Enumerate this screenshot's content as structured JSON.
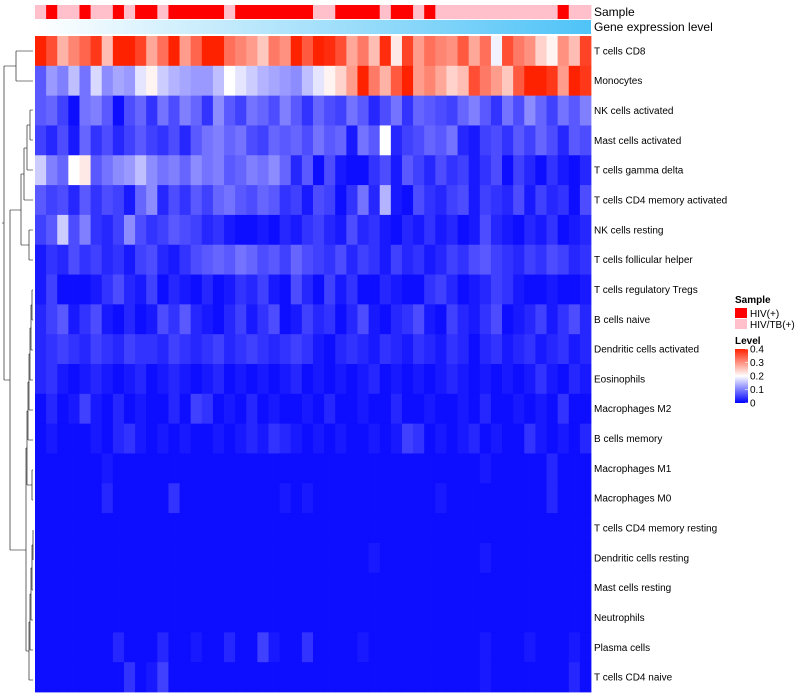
{
  "chart_data": {
    "type": "heatmap",
    "title": "",
    "annotation_tracks": [
      {
        "name": "Sample"
      },
      {
        "name": "Gene expression level"
      }
    ],
    "sample_groups": [
      "HIV/TB(+)",
      "HIV(+)",
      "HIV/TB(+)",
      "HIV/TB(+)",
      "HIV(+)",
      "HIV/TB(+)",
      "HIV/TB(+)",
      "HIV(+)",
      "HIV/TB(+)",
      "HIV(+)",
      "HIV(+)",
      "HIV/TB(+)",
      "HIV(+)",
      "HIV(+)",
      "HIV(+)",
      "HIV(+)",
      "HIV(+)",
      "HIV/TB(+)",
      "HIV(+)",
      "HIV(+)",
      "HIV(+)",
      "HIV(+)",
      "HIV(+)",
      "HIV(+)",
      "HIV(+)",
      "HIV/TB(+)",
      "HIV/TB(+)",
      "HIV(+)",
      "HIV(+)",
      "HIV(+)",
      "HIV(+)",
      "HIV/TB(+)",
      "HIV(+)",
      "HIV(+)",
      "HIV/TB(+)",
      "HIV(+)",
      "HIV/TB(+)",
      "HIV/TB(+)",
      "HIV/TB(+)",
      "HIV/TB(+)",
      "HIV/TB(+)",
      "HIV/TB(+)",
      "HIV/TB(+)",
      "HIV/TB(+)",
      "HIV/TB(+)",
      "HIV/TB(+)",
      "HIV/TB(+)",
      "HIV(+)",
      "HIV/TB(+)",
      "HIV/TB(+)"
    ],
    "rows": [
      "T cells CD8",
      "Monocytes",
      "NK cells activated",
      "Mast cells activated",
      "T cells gamma delta",
      "T cells CD4 memory activated",
      "NK cells resting",
      "T cells follicular helper",
      "T cells regulatory  Tregs",
      "B cells naive",
      "Dendritic cells activated",
      "Eosinophils",
      "Macrophages M2",
      "B cells memory",
      "Macrophages M1",
      "Macrophages M0",
      "T cells CD4 memory resting",
      "Dendritic cells resting",
      "Mast cells resting",
      "Neutrophils",
      "Plasma cells",
      "T cells CD4 naive"
    ],
    "values": [
      [
        0.42,
        0.36,
        0.27,
        0.31,
        0.34,
        0.38,
        0.26,
        0.41,
        0.45,
        0.37,
        0.28,
        0.33,
        0.42,
        0.29,
        0.34,
        0.46,
        0.45,
        0.33,
        0.31,
        0.29,
        0.25,
        0.32,
        0.3,
        0.42,
        0.35,
        0.44,
        0.39,
        0.36,
        0.28,
        0.32,
        0.26,
        0.39,
        0.22,
        0.37,
        0.29,
        0.33,
        0.31,
        0.3,
        0.35,
        0.28,
        0.33,
        0.19,
        0.36,
        0.32,
        0.3,
        0.24,
        0.21,
        0.3,
        0.26,
        0.37
      ],
      [
        0.07,
        0.12,
        0.1,
        0.15,
        0.09,
        0.17,
        0.11,
        0.13,
        0.12,
        0.18,
        0.21,
        0.16,
        0.14,
        0.13,
        0.12,
        0.12,
        0.15,
        0.2,
        0.18,
        0.16,
        0.14,
        0.13,
        0.12,
        0.11,
        0.15,
        0.18,
        0.21,
        0.24,
        0.29,
        0.42,
        0.32,
        0.27,
        0.35,
        0.44,
        0.29,
        0.31,
        0.28,
        0.24,
        0.26,
        0.36,
        0.32,
        0.29,
        0.25,
        0.35,
        0.4,
        0.45,
        0.38,
        0.29,
        0.46,
        0.38
      ],
      [
        0.07,
        0.08,
        0.05,
        0.01,
        0.09,
        0.1,
        0.07,
        0.01,
        0.06,
        0.08,
        0.04,
        0.09,
        0.06,
        0.1,
        0.08,
        0.04,
        0.11,
        0.07,
        0.05,
        0.09,
        0.08,
        0.06,
        0.1,
        0.07,
        0.04,
        0.08,
        0.06,
        0.05,
        0.09,
        0.07,
        0.03,
        0.06,
        0.09,
        0.04,
        0.08,
        0.07,
        0.06,
        0.05,
        0.08,
        0.1,
        0.07,
        0.04,
        0.09,
        0.06,
        0.11,
        0.08,
        0.05,
        0.09,
        0.07,
        0.1
      ],
      [
        0.05,
        0.03,
        0.06,
        0.02,
        0.08,
        0.04,
        0.06,
        0.03,
        0.05,
        0.07,
        0.05,
        0.04,
        0.06,
        0.03,
        0.07,
        0.09,
        0.1,
        0.08,
        0.09,
        0.06,
        0.05,
        0.08,
        0.07,
        0.08,
        0.06,
        0.09,
        0.07,
        0.08,
        0.02,
        0.09,
        0.07,
        0.2,
        0.03,
        0.05,
        0.06,
        0.08,
        0.07,
        0.09,
        0.03,
        0.02,
        0.05,
        0.06,
        0.04,
        0.07,
        0.05,
        0.08,
        0.06,
        0.03,
        0.07,
        0.06
      ],
      [
        0.16,
        0.1,
        0.08,
        0.2,
        0.22,
        0.07,
        0.09,
        0.11,
        0.12,
        0.15,
        0.11,
        0.09,
        0.1,
        0.08,
        0.11,
        0.09,
        0.1,
        0.07,
        0.08,
        0.1,
        0.09,
        0.11,
        0.08,
        0.03,
        0.07,
        0.01,
        0.06,
        0.02,
        0.01,
        0.01,
        0.04,
        0.06,
        0.02,
        0.07,
        0.05,
        0.03,
        0.06,
        0.04,
        0.05,
        0.02,
        0.04,
        0.06,
        0.01,
        0.05,
        0.03,
        0.01,
        0.04,
        0.02,
        0.01,
        0.03
      ],
      [
        0.07,
        0.05,
        0.06,
        0.03,
        0.07,
        0.04,
        0.06,
        0.05,
        0.02,
        0.08,
        0.11,
        0.03,
        0.06,
        0.04,
        0.07,
        0.05,
        0.08,
        0.09,
        0.07,
        0.06,
        0.08,
        0.07,
        0.04,
        0.05,
        0.02,
        0.06,
        0.05,
        0.01,
        0.04,
        0.09,
        0.03,
        0.14,
        0.02,
        0.01,
        0.06,
        0.04,
        0.03,
        0.05,
        0.06,
        0.02,
        0.05,
        0.04,
        0.03,
        0.06,
        0.02,
        0.05,
        0.03,
        0.04,
        0.01,
        0.06
      ],
      [
        0.05,
        0.07,
        0.16,
        0.06,
        0.1,
        0.04,
        0.03,
        0.05,
        0.11,
        0.06,
        0.04,
        0.05,
        0.07,
        0.06,
        0.05,
        0.03,
        0.04,
        0.02,
        0.01,
        0.01,
        0.02,
        0.01,
        0.03,
        0.02,
        0.04,
        0.05,
        0.03,
        0.02,
        0.06,
        0.03,
        0.04,
        0.02,
        0.01,
        0.03,
        0.02,
        0.04,
        0.02,
        0.03,
        0.01,
        0.02,
        0.06,
        0.03,
        0.02,
        0.01,
        0.03,
        0.02,
        0.04,
        0.01,
        0.02,
        0.03
      ],
      [
        0.02,
        0.04,
        0.03,
        0.06,
        0.04,
        0.05,
        0.03,
        0.04,
        0.02,
        0.05,
        0.06,
        0.03,
        0.02,
        0.04,
        0.06,
        0.07,
        0.08,
        0.07,
        0.09,
        0.08,
        0.06,
        0.07,
        0.05,
        0.08,
        0.06,
        0.05,
        0.04,
        0.06,
        0.03,
        0.05,
        0.04,
        0.02,
        0.05,
        0.03,
        0.04,
        0.02,
        0.03,
        0.05,
        0.04,
        0.06,
        0.07,
        0.05,
        0.04,
        0.03,
        0.05,
        0.04,
        0.06,
        0.05,
        0.03,
        0.04
      ],
      [
        0.02,
        0.05,
        0.01,
        0.01,
        0.01,
        0.02,
        0.04,
        0.06,
        0.03,
        0.02,
        0.05,
        0.01,
        0.03,
        0.02,
        0.01,
        0.03,
        0.01,
        0.02,
        0.04,
        0.03,
        0.05,
        0.02,
        0.01,
        0.06,
        0.03,
        0.01,
        0.05,
        0.02,
        0.04,
        0.01,
        0.01,
        0.03,
        0.02,
        0.01,
        0.01,
        0.04,
        0.05,
        0.03,
        0.01,
        0.02,
        0.03,
        0.05,
        0.04,
        0.02,
        0.01,
        0.01,
        0.02,
        0.01,
        0.01,
        0.02
      ],
      [
        0.03,
        0.05,
        0.07,
        0.02,
        0.04,
        0.06,
        0.02,
        0.01,
        0.03,
        0.01,
        0.02,
        0.06,
        0.04,
        0.07,
        0.03,
        0.02,
        0.01,
        0.03,
        0.05,
        0.02,
        0.04,
        0.06,
        0.01,
        0.02,
        0.05,
        0.03,
        0.04,
        0.01,
        0.03,
        0.06,
        0.02,
        0.01,
        0.03,
        0.04,
        0.06,
        0.02,
        0.01,
        0.05,
        0.03,
        0.02,
        0.04,
        0.06,
        0.01,
        0.02,
        0.03,
        0.05,
        0.02,
        0.04,
        0.06,
        0.03
      ],
      [
        0.03,
        0.04,
        0.05,
        0.04,
        0.03,
        0.05,
        0.04,
        0.03,
        0.05,
        0.04,
        0.04,
        0.03,
        0.05,
        0.04,
        0.03,
        0.04,
        0.05,
        0.03,
        0.04,
        0.05,
        0.04,
        0.03,
        0.04,
        0.05,
        0.04,
        0.02,
        0.01,
        0.03,
        0.04,
        0.03,
        0.02,
        0.04,
        0.03,
        0.02,
        0.04,
        0.03,
        0.02,
        0.04,
        0.03,
        0.01,
        0.03,
        0.04,
        0.02,
        0.03,
        0.04,
        0.02,
        0.03,
        0.04,
        0.02,
        0.03
      ],
      [
        0.03,
        0.04,
        0.02,
        0.01,
        0.02,
        0.03,
        0.02,
        0.01,
        0.02,
        0.03,
        0.01,
        0.02,
        0.03,
        0.02,
        0.01,
        0.02,
        0.03,
        0.01,
        0.02,
        0.01,
        0.02,
        0.01,
        0.02,
        0.03,
        0.01,
        0.02,
        0.01,
        0.02,
        0.01,
        0.02,
        0.03,
        0.01,
        0.02,
        0.01,
        0.02,
        0.01,
        0.02,
        0.03,
        0.02,
        0.01,
        0.02,
        0.01,
        0.02,
        0.01,
        0.02,
        0.04,
        0.02,
        0.01,
        0.03,
        0.02
      ],
      [
        0.01,
        0.03,
        0.01,
        0.02,
        0.05,
        0.02,
        0.01,
        0.03,
        0.01,
        0.02,
        0.01,
        0.01,
        0.03,
        0.01,
        0.05,
        0.04,
        0.01,
        0.02,
        0.01,
        0.03,
        0.01,
        0.02,
        0.01,
        0.01,
        0.02,
        0.01,
        0.03,
        0.01,
        0.01,
        0.02,
        0.01,
        0.01,
        0.03,
        0.01,
        0.01,
        0.02,
        0.01,
        0.01,
        0.02,
        0.01,
        0.03,
        0.01,
        0.01,
        0.02,
        0.01,
        0.02,
        0.01,
        0.04,
        0.01,
        0.01
      ],
      [
        0.01,
        0.02,
        0.01,
        0.01,
        0.01,
        0.02,
        0.01,
        0.03,
        0.04,
        0.02,
        0.01,
        0.02,
        0.01,
        0.02,
        0.01,
        0.01,
        0.02,
        0.01,
        0.02,
        0.03,
        0.02,
        0.04,
        0.03,
        0.02,
        0.01,
        0.02,
        0.01,
        0.02,
        0.01,
        0.01,
        0.02,
        0.01,
        0.02,
        0.05,
        0.04,
        0.01,
        0.02,
        0.01,
        0.02,
        0.03,
        0.01,
        0.02,
        0.01,
        0.01,
        0.04,
        0.02,
        0.01,
        0.02,
        0.01,
        0.03
      ],
      [
        0.01,
        0.01,
        0.01,
        0.01,
        0.01,
        0.01,
        0.02,
        0.01,
        0.01,
        0.01,
        0.01,
        0.01,
        0.01,
        0.01,
        0.01,
        0.01,
        0.01,
        0.01,
        0.01,
        0.01,
        0.01,
        0.01,
        0.01,
        0.01,
        0.01,
        0.01,
        0.01,
        0.01,
        0.01,
        0.01,
        0.01,
        0.01,
        0.01,
        0.01,
        0.01,
        0.01,
        0.01,
        0.01,
        0.01,
        0.01,
        0.02,
        0.01,
        0.01,
        0.01,
        0.01,
        0.01,
        0.03,
        0.01,
        0.01,
        0.01
      ],
      [
        0.01,
        0.01,
        0.01,
        0.01,
        0.01,
        0.01,
        0.03,
        0.01,
        0.01,
        0.01,
        0.01,
        0.01,
        0.04,
        0.01,
        0.01,
        0.01,
        0.01,
        0.01,
        0.01,
        0.01,
        0.01,
        0.01,
        0.02,
        0.01,
        0.02,
        0.01,
        0.01,
        0.01,
        0.01,
        0.01,
        0.01,
        0.01,
        0.01,
        0.01,
        0.01,
        0.01,
        0.02,
        0.01,
        0.01,
        0.01,
        0.01,
        0.01,
        0.01,
        0.01,
        0.01,
        0.01,
        0.03,
        0.01,
        0.01,
        0.01
      ],
      [
        0.01,
        0.01,
        0.01,
        0.01,
        0.01,
        0.01,
        0.01,
        0.01,
        0.01,
        0.01,
        0.01,
        0.01,
        0.01,
        0.01,
        0.01,
        0.01,
        0.01,
        0.01,
        0.01,
        0.01,
        0.01,
        0.01,
        0.01,
        0.01,
        0.01,
        0.01,
        0.01,
        0.01,
        0.01,
        0.01,
        0.01,
        0.01,
        0.01,
        0.01,
        0.01,
        0.01,
        0.01,
        0.01,
        0.01,
        0.01,
        0.01,
        0.01,
        0.01,
        0.01,
        0.01,
        0.01,
        0.01,
        0.01,
        0.01,
        0.01
      ],
      [
        0.01,
        0.01,
        0.01,
        0.01,
        0.01,
        0.01,
        0.01,
        0.01,
        0.01,
        0.01,
        0.01,
        0.01,
        0.01,
        0.01,
        0.01,
        0.01,
        0.01,
        0.01,
        0.01,
        0.01,
        0.01,
        0.01,
        0.01,
        0.01,
        0.01,
        0.01,
        0.01,
        0.01,
        0.01,
        0.01,
        0.02,
        0.01,
        0.01,
        0.01,
        0.01,
        0.01,
        0.01,
        0.01,
        0.01,
        0.01,
        0.02,
        0.01,
        0.01,
        0.01,
        0.01,
        0.01,
        0.01,
        0.01,
        0.01,
        0.01
      ],
      [
        0.01,
        0.01,
        0.01,
        0.01,
        0.01,
        0.01,
        0.01,
        0.01,
        0.01,
        0.01,
        0.01,
        0.01,
        0.01,
        0.01,
        0.01,
        0.01,
        0.01,
        0.01,
        0.01,
        0.01,
        0.01,
        0.01,
        0.01,
        0.01,
        0.01,
        0.01,
        0.01,
        0.01,
        0.01,
        0.01,
        0.01,
        0.01,
        0.01,
        0.01,
        0.01,
        0.01,
        0.01,
        0.01,
        0.01,
        0.01,
        0.01,
        0.01,
        0.01,
        0.01,
        0.01,
        0.01,
        0.01,
        0.01,
        0.01,
        0.01
      ],
      [
        0.01,
        0.01,
        0.01,
        0.01,
        0.01,
        0.01,
        0.01,
        0.01,
        0.01,
        0.01,
        0.01,
        0.01,
        0.01,
        0.01,
        0.01,
        0.01,
        0.01,
        0.01,
        0.01,
        0.01,
        0.01,
        0.01,
        0.01,
        0.01,
        0.01,
        0.01,
        0.01,
        0.01,
        0.01,
        0.01,
        0.01,
        0.01,
        0.01,
        0.01,
        0.01,
        0.01,
        0.01,
        0.01,
        0.01,
        0.01,
        0.01,
        0.01,
        0.01,
        0.01,
        0.01,
        0.01,
        0.01,
        0.01,
        0.01,
        0.01
      ],
      [
        0.01,
        0.01,
        0.01,
        0.01,
        0.01,
        0.01,
        0.01,
        0.03,
        0.01,
        0.01,
        0.01,
        0.03,
        0.01,
        0.01,
        0.02,
        0.01,
        0.01,
        0.03,
        0.01,
        0.01,
        0.05,
        0.02,
        0.01,
        0.01,
        0.04,
        0.01,
        0.01,
        0.01,
        0.01,
        0.02,
        0.01,
        0.01,
        0.01,
        0.01,
        0.01,
        0.01,
        0.01,
        0.01,
        0.01,
        0.01,
        0.02,
        0.01,
        0.01,
        0.01,
        0.02,
        0.01,
        0.01,
        0.01,
        0.02,
        0.01
      ],
      [
        0.01,
        0.01,
        0.01,
        0.01,
        0.01,
        0.01,
        0.01,
        0.01,
        0.04,
        0.01,
        0.02,
        0.05,
        0.01,
        0.01,
        0.01,
        0.01,
        0.01,
        0.01,
        0.01,
        0.01,
        0.01,
        0.01,
        0.01,
        0.01,
        0.01,
        0.01,
        0.01,
        0.01,
        0.01,
        0.01,
        0.01,
        0.01,
        0.01,
        0.01,
        0.01,
        0.01,
        0.01,
        0.01,
        0.01,
        0.01,
        0.02,
        0.01,
        0.01,
        0.01,
        0.01,
        0.01,
        0.01,
        0.01,
        0.03,
        0.01
      ]
    ],
    "color_scale": {
      "title": "Level",
      "min": 0,
      "max": 0.4,
      "ticks": [
        0.4,
        0.3,
        0.2,
        0.1,
        0
      ],
      "stops": [
        "#0000FF",
        "#FFFFFF",
        "#FF2200"
      ]
    },
    "legend": {
      "position": "right",
      "sample_title": "Sample",
      "entries": [
        {
          "label": "HIV(+)",
          "color": "#FF0000"
        },
        {
          "label": "HIV/TB(+)",
          "color": "#FFC0CB"
        }
      ]
    },
    "gradient_colors": [
      "#FFFFFF",
      "#4FC3F7"
    ]
  }
}
